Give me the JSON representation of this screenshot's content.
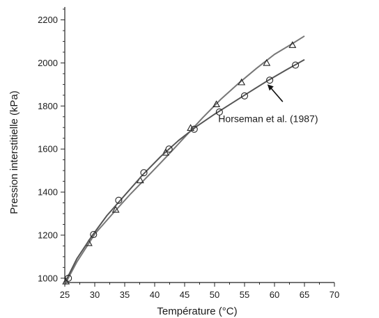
{
  "chart_data": {
    "type": "line",
    "xlabel": "Température (°C)",
    "ylabel": "Pression interstitielle (kPa)",
    "xlim": [
      25,
      70
    ],
    "ylim": [
      980,
      2260
    ],
    "x_ticks": [
      25,
      30,
      35,
      40,
      45,
      50,
      55,
      60,
      65,
      70
    ],
    "y_ticks": [
      1000,
      1200,
      1400,
      1600,
      1800,
      2000,
      2200
    ],
    "grid": false,
    "series": [
      {
        "marker": "triangle",
        "color": "#777777",
        "points": [
          [
            25.2,
            985
          ],
          [
            29.0,
            1163
          ],
          [
            33.5,
            1318
          ],
          [
            37.6,
            1455
          ],
          [
            41.8,
            1583
          ],
          [
            46.0,
            1698
          ],
          [
            50.3,
            1808
          ],
          [
            54.5,
            1910
          ],
          [
            58.7,
            2000
          ],
          [
            63.0,
            2083
          ]
        ],
        "curve": [
          [
            25,
            970
          ],
          [
            27,
            1075
          ],
          [
            30,
            1205
          ],
          [
            33,
            1300
          ],
          [
            36,
            1392
          ],
          [
            39,
            1478
          ],
          [
            42,
            1565
          ],
          [
            45,
            1655
          ],
          [
            48,
            1745
          ],
          [
            51,
            1830
          ],
          [
            54,
            1905
          ],
          [
            57,
            1975
          ],
          [
            60,
            2040
          ],
          [
            63,
            2090
          ],
          [
            65,
            2125
          ]
        ]
      },
      {
        "marker": "circle",
        "color": "#555555",
        "points": [
          [
            25.6,
            1000
          ],
          [
            29.8,
            1203
          ],
          [
            34.0,
            1362
          ],
          [
            38.2,
            1490
          ],
          [
            42.4,
            1600
          ],
          [
            46.6,
            1692
          ],
          [
            50.8,
            1772
          ],
          [
            55.0,
            1847
          ],
          [
            59.2,
            1920
          ],
          [
            63.5,
            1990
          ]
        ],
        "curve": [
          [
            25,
            978
          ],
          [
            27,
            1090
          ],
          [
            29.5,
            1195
          ],
          [
            32,
            1290
          ],
          [
            35,
            1385
          ],
          [
            38,
            1480
          ],
          [
            41,
            1565
          ],
          [
            44,
            1640
          ],
          [
            47,
            1705
          ],
          [
            50,
            1762
          ],
          [
            53,
            1815
          ],
          [
            56,
            1868
          ],
          [
            59,
            1920
          ],
          [
            62,
            1968
          ],
          [
            65,
            2015
          ]
        ]
      }
    ],
    "annotations": [
      {
        "text": "Horseman et al. (1987)",
        "x": 60.5,
        "y": 1745,
        "arrow_to": [
          58.7,
          1920
        ]
      }
    ]
  }
}
